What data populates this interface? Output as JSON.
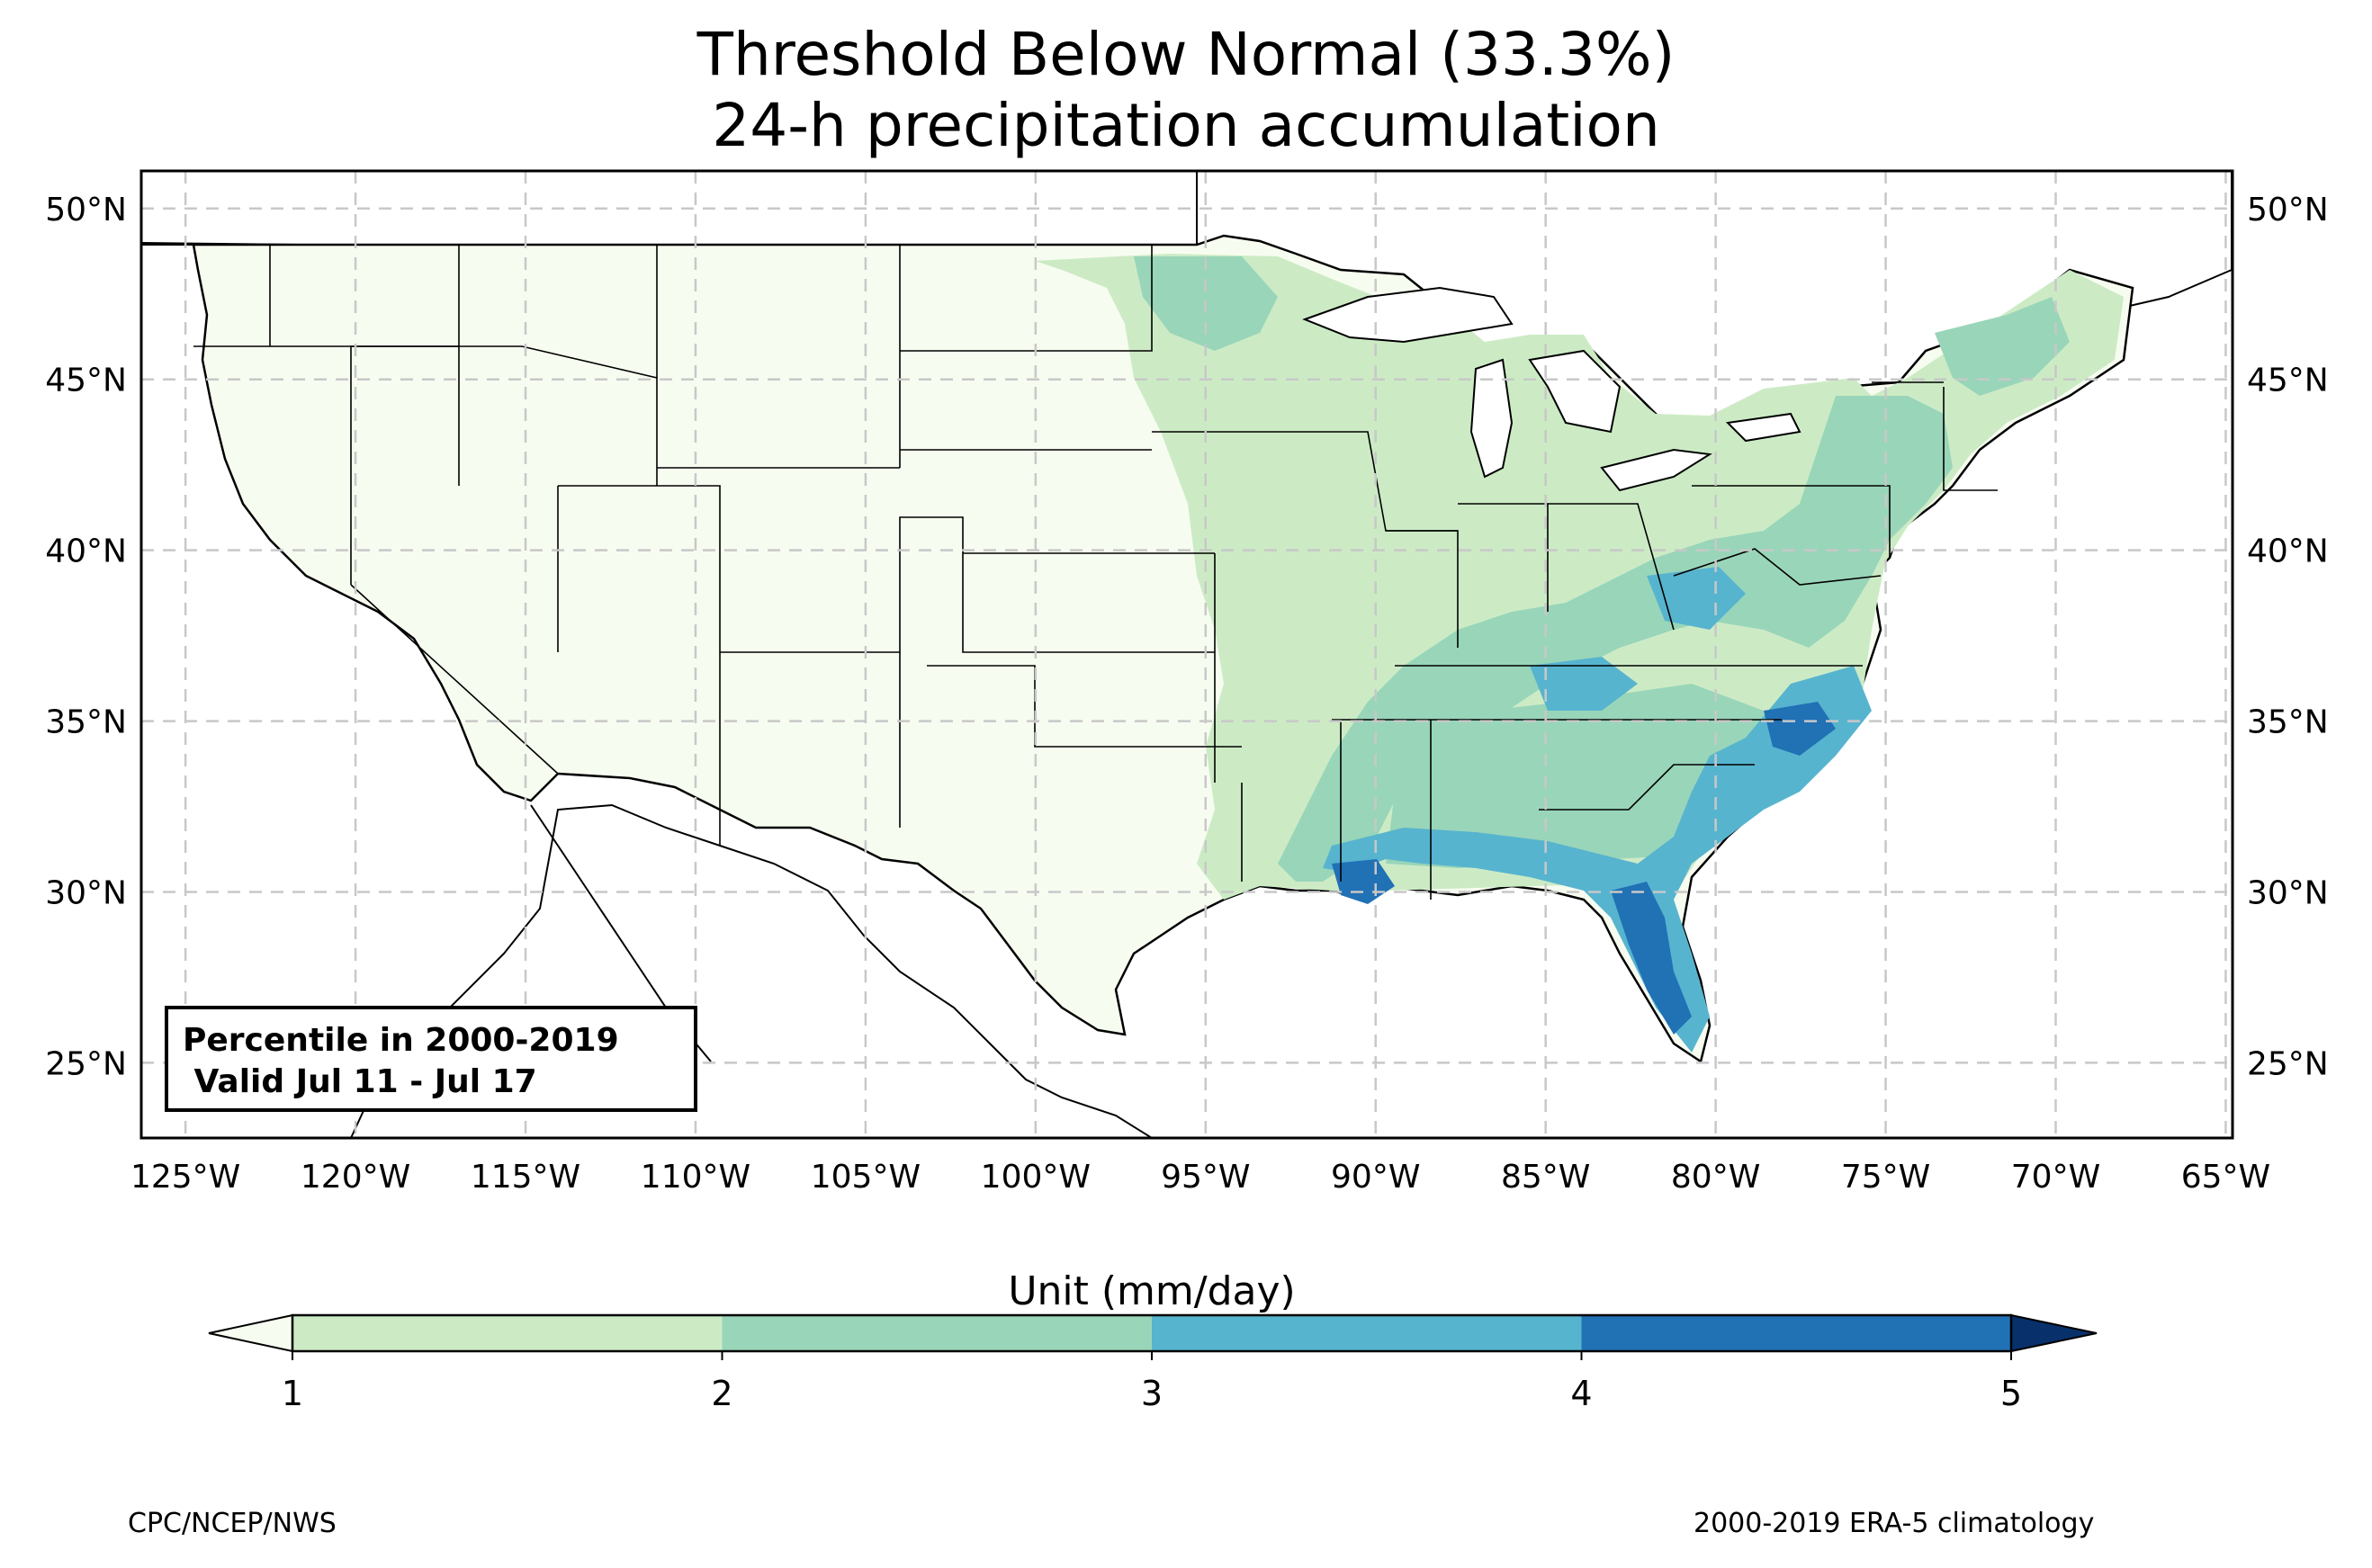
{
  "title": {
    "line1": "Threshold Below Normal (33.3%)",
    "line2": "24-h precipitation accumulation"
  },
  "map": {
    "lon_range": [
      -126.3,
      -64.8
    ],
    "lat_range": [
      22.8,
      51.1
    ],
    "lon_ticks": [
      "125°W",
      "120°W",
      "115°W",
      "110°W",
      "105°W",
      "100°W",
      "95°W",
      "90°W",
      "85°W",
      "80°W",
      "75°W",
      "70°W",
      "65°W"
    ],
    "lat_ticks": [
      "50°N",
      "45°N",
      "40°N",
      "35°N",
      "30°N",
      "25°N"
    ],
    "gridlines": true,
    "land_color": "#f7fcf0",
    "water_color": "#ffffff"
  },
  "info_box": {
    "line1": "Percentile in 2000-2019",
    "line2": " Valid Jul 11 - Jul 17"
  },
  "colorbar": {
    "title": "Unit (mm/day)",
    "ticks": [
      "1",
      "2",
      "3",
      "4",
      "5"
    ],
    "colors": [
      "#ccebc5",
      "#99d5b9",
      "#57b4cf",
      "#2171b5",
      "#08306b"
    ],
    "under_color": "#f7fcf0",
    "extend": "both"
  },
  "footer": {
    "left": "CPC/NCEP/NWS",
    "right": "2000-2019 ERA-5 climatology"
  }
}
